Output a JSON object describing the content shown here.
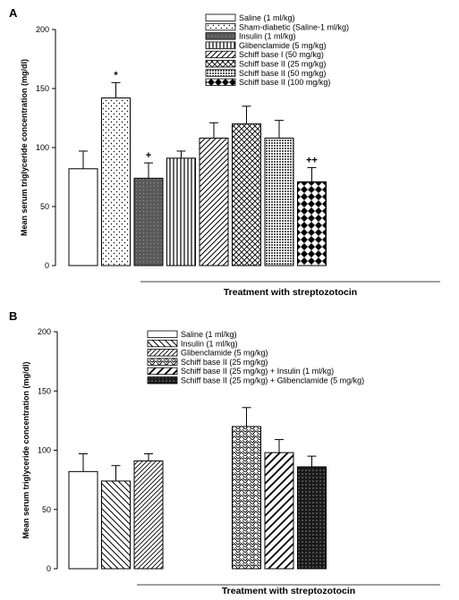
{
  "chart_data": [
    {
      "panel": "A",
      "type": "bar",
      "xlabel": "Treatment with streptozotocin",
      "ylabel": "Mean serum triglyceride concentration (mg/dl)",
      "ylim": [
        0,
        200
      ],
      "yticks": [
        "0",
        "50",
        "100",
        "150",
        "200"
      ],
      "legend_position": "top-right",
      "series": [
        {
          "name": "Saline (1 ml/kg)",
          "value": 82,
          "error": 15,
          "pattern": "white",
          "annotation": ""
        },
        {
          "name": "Sham-diabetic (Saline-1 ml/kg)",
          "value": 142,
          "error": 13,
          "pattern": "dots",
          "annotation": "*"
        },
        {
          "name": "Insulin (1 ml/kg)",
          "value": 74,
          "error": 13,
          "pattern": "dark",
          "annotation": "+"
        },
        {
          "name": "Glibenclamide (5 mg/kg)",
          "value": 91,
          "error": 6,
          "pattern": "vlines",
          "annotation": ""
        },
        {
          "name": "Schiff base I (50 mg/kg)",
          "value": 108,
          "error": 13,
          "pattern": "diag",
          "annotation": ""
        },
        {
          "name": "Schiff base II (25 mg/kg)",
          "value": 120,
          "error": 15,
          "pattern": "cross",
          "annotation": ""
        },
        {
          "name": "Schiff base II (50 mg/kg)",
          "value": 108,
          "error": 15,
          "pattern": "grid",
          "annotation": ""
        },
        {
          "name": "Schiff base II (100 mg/kg)",
          "value": 71,
          "error": 12,
          "pattern": "checker",
          "annotation": "++"
        }
      ]
    },
    {
      "panel": "B",
      "type": "bar",
      "xlabel": "Treatment with streptozotocin",
      "ylabel": "Mean serum triglyceride concentration (mg/dl)",
      "ylim": [
        0,
        200
      ],
      "yticks": [
        "0",
        "50",
        "100",
        "150",
        "200"
      ],
      "legend_position": "top-right",
      "series": [
        {
          "name": "Saline (1 ml/kg)",
          "value": 82,
          "error": 15,
          "pattern": "white",
          "slot": 0
        },
        {
          "name": "Insulin (1 ml/kg)",
          "value": 74,
          "error": 13,
          "pattern": "bdiag",
          "slot": 1
        },
        {
          "name": "Glibenclamide (5 mg/kg)",
          "value": 91,
          "error": 6,
          "pattern": "fdiag",
          "slot": 2
        },
        {
          "name": "Schiff base II (25 mg/kg)",
          "value": 120,
          "error": 16,
          "pattern": "wave",
          "slot": 5
        },
        {
          "name": "Schiff base II (25 mg/kg) + Insulin (1 ml/kg)",
          "value": 98,
          "error": 11,
          "pattern": "diagwide",
          "slot": 6
        },
        {
          "name": "Schiff base II (25 mg/kg) + Glibenclamide (5 mg/kg)",
          "value": 86,
          "error": 9,
          "pattern": "darkdots",
          "slot": 7
        }
      ]
    }
  ]
}
